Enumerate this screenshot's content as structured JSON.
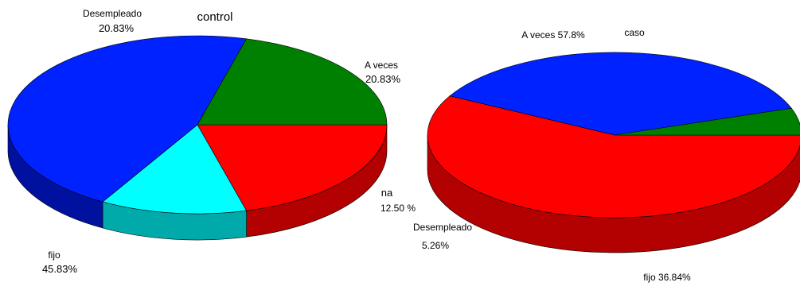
{
  "chart_data": [
    {
      "type": "pie",
      "title": "control",
      "slices": [
        {
          "label": "A veces",
          "value_text": "20.83%",
          "value": 20.83,
          "color": "#ff0000",
          "side_color": "#b30000"
        },
        {
          "label": "na",
          "value_text": "12.50 %",
          "value": 12.5,
          "color": "#00ffff",
          "side_color": "#00aaaa"
        },
        {
          "label": "fijo",
          "value_text": "45.83%",
          "value": 45.83,
          "color": "#0022ff",
          "side_color": "#0011a0"
        },
        {
          "label": "Desempleado",
          "value_text": "20.83%",
          "value": 20.83,
          "color": "#008000",
          "side_color": "#004d00"
        }
      ]
    },
    {
      "type": "pie",
      "title": "caso",
      "slices": [
        {
          "label": "A veces",
          "value_text": "57.8%",
          "value": 57.8,
          "color": "#ff0000",
          "side_color": "#b30000"
        },
        {
          "label": "fijo",
          "value_text": "36.84%",
          "value": 36.84,
          "color": "#0022ff",
          "side_color": "#0011a0"
        },
        {
          "label": "Desempleado",
          "value_text": "5.26%",
          "value": 5.26,
          "color": "#008000",
          "side_color": "#003300"
        }
      ]
    }
  ]
}
